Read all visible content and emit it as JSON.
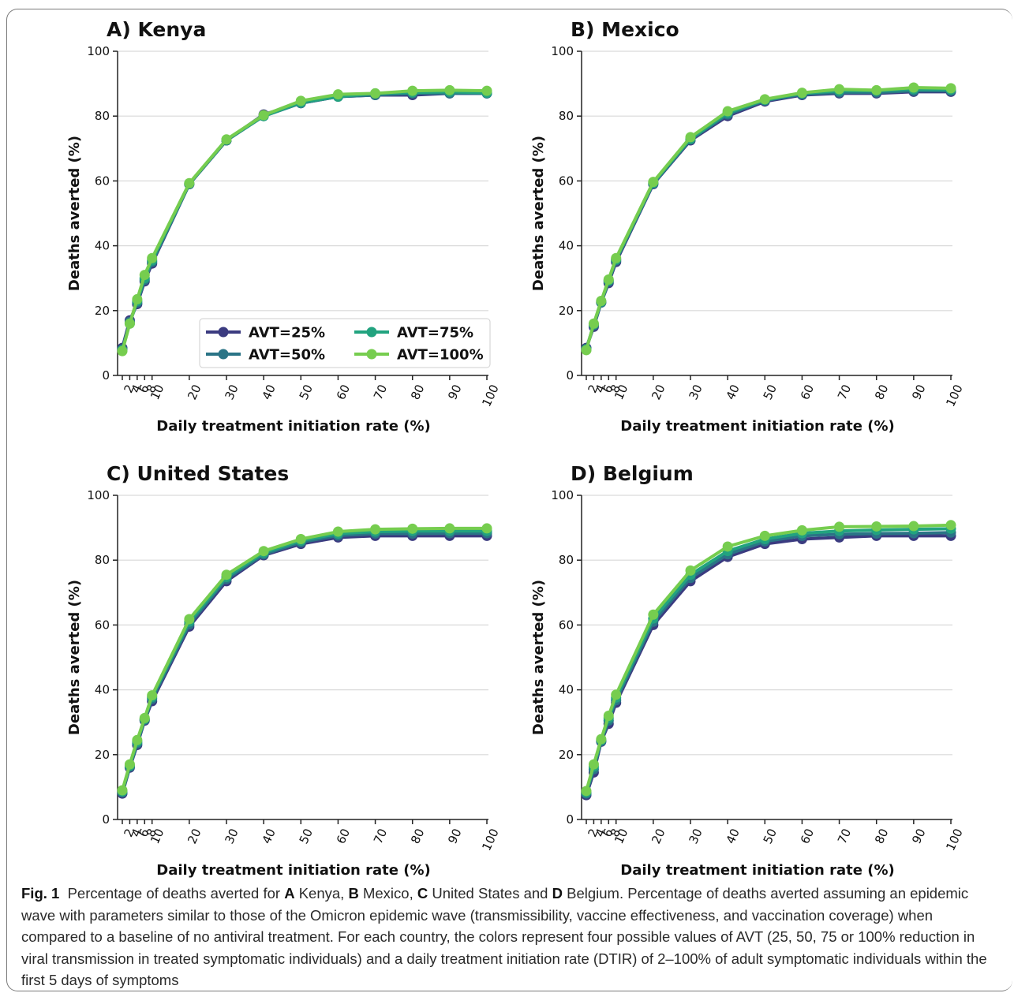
{
  "figure": {
    "x_ticks": [
      2,
      4,
      6,
      8,
      10,
      20,
      30,
      40,
      50,
      60,
      70,
      80,
      90,
      100
    ],
    "y_ticks": [
      0,
      20,
      40,
      60,
      80,
      100
    ],
    "series_colors": {
      "AVT=25%": "#3b3b80",
      "AVT=50%": "#2a7486",
      "AVT=75%": "#22a37f",
      "AVT=100%": "#76cd4f"
    }
  },
  "legend": {
    "items": [
      "AVT=25%",
      "AVT=50%",
      "AVT=75%",
      "AVT=100%"
    ]
  },
  "caption": {
    "fig_label": "Fig. 1",
    "text_1": "Percentage of deaths averted for ",
    "a": "A",
    "text_2": " Kenya, ",
    "b": "B",
    "text_3": " Mexico, ",
    "c": "C",
    "text_4": " United States and ",
    "d": "D",
    "text_5": " Belgium. Percentage of deaths averted assuming an epidemic wave with parameters similar to those of the Omicron epidemic wave (transmissibility, vaccine effectiveness, and vaccination coverage) when compared to a baseline of no antiviral treatment. For each country, the colors represent four possible values of AVT (25, 50, 75 or 100% reduction in viral transmission in treated symptomatic individuals) and a daily treatment initiation rate (DTIR) of 2–100% of adult symptomatic individuals within the first 5 days of symptoms"
  },
  "chart_data": [
    {
      "type": "line",
      "title": "A) Kenya",
      "xlabel": "Daily treatment initiation rate (%)",
      "ylabel": "Deaths averted (%)",
      "ylim": [
        0,
        100
      ],
      "grid": "horizontal",
      "legend": "lower-right",
      "x": [
        2,
        4,
        6,
        8,
        10,
        20,
        30,
        40,
        50,
        60,
        70,
        80,
        90,
        100
      ],
      "series": [
        {
          "name": "AVT=25%",
          "values": [
            8.5,
            17.0,
            22.0,
            29.0,
            34.5,
            59.0,
            72.5,
            80.5,
            84.0,
            86.0,
            86.5,
            86.5,
            87.0,
            87.0
          ]
        },
        {
          "name": "AVT=50%",
          "values": [
            8.0,
            16.5,
            22.5,
            29.5,
            35.0,
            59.0,
            72.5,
            80.0,
            84.0,
            86.0,
            86.5,
            87.0,
            87.0,
            87.0
          ]
        },
        {
          "name": "AVT=75%",
          "values": [
            7.8,
            16.0,
            23.0,
            30.0,
            35.5,
            59.2,
            72.7,
            80.0,
            84.2,
            86.0,
            87.0,
            87.3,
            87.5,
            87.2
          ]
        },
        {
          "name": "AVT=100%",
          "values": [
            7.5,
            16.0,
            23.5,
            31.0,
            36.2,
            59.3,
            72.8,
            80.3,
            84.7,
            86.7,
            87.0,
            87.8,
            88.0,
            87.8
          ]
        }
      ]
    },
    {
      "type": "line",
      "title": "B) Mexico",
      "xlabel": "Daily treatment initiation rate (%)",
      "ylabel": "Deaths averted (%)",
      "ylim": [
        0,
        100
      ],
      "grid": "horizontal",
      "x": [
        2,
        4,
        6,
        8,
        10,
        20,
        30,
        40,
        50,
        60,
        70,
        80,
        90,
        100
      ],
      "series": [
        {
          "name": "AVT=25%",
          "values": [
            8.5,
            15.0,
            22.5,
            28.5,
            35.0,
            59.0,
            72.5,
            80.0,
            84.5,
            86.5,
            87.0,
            87.0,
            87.5,
            87.5
          ]
        },
        {
          "name": "AVT=50%",
          "values": [
            8.2,
            15.5,
            22.5,
            29.0,
            35.5,
            59.2,
            72.8,
            80.5,
            84.8,
            86.7,
            87.3,
            87.3,
            87.8,
            87.8
          ]
        },
        {
          "name": "AVT=75%",
          "values": [
            8.0,
            15.8,
            22.8,
            29.3,
            35.8,
            59.4,
            73.0,
            81.0,
            85.0,
            87.0,
            87.8,
            87.8,
            88.3,
            88.2
          ]
        },
        {
          "name": "AVT=100%",
          "values": [
            7.8,
            16.0,
            23.0,
            29.6,
            36.2,
            59.7,
            73.5,
            81.5,
            85.2,
            87.2,
            88.3,
            88.0,
            88.8,
            88.6
          ]
        }
      ]
    },
    {
      "type": "line",
      "title": "C) United States",
      "xlabel": "Daily treatment initiation rate (%)",
      "ylabel": "Deaths averted (%)",
      "ylim": [
        0,
        100
      ],
      "grid": "horizontal",
      "x": [
        2,
        4,
        6,
        8,
        10,
        20,
        30,
        40,
        50,
        60,
        70,
        80,
        90,
        100
      ],
      "series": [
        {
          "name": "AVT=25%",
          "values": [
            8.0,
            16.0,
            23.0,
            30.5,
            36.5,
            59.5,
            73.5,
            81.5,
            85.0,
            87.0,
            87.5,
            87.5,
            87.5,
            87.5
          ]
        },
        {
          "name": "AVT=50%",
          "values": [
            8.4,
            16.3,
            23.5,
            30.8,
            37.2,
            60.2,
            74.2,
            81.8,
            85.5,
            87.6,
            88.2,
            88.2,
            88.3,
            88.3
          ]
        },
        {
          "name": "AVT=75%",
          "values": [
            8.7,
            16.6,
            24.0,
            31.0,
            37.8,
            61.0,
            74.8,
            82.3,
            86.0,
            88.2,
            88.8,
            89.0,
            89.0,
            89.0
          ]
        },
        {
          "name": "AVT=100%",
          "values": [
            9.0,
            17.0,
            24.5,
            31.3,
            38.3,
            61.8,
            75.5,
            82.8,
            86.5,
            88.8,
            89.5,
            89.7,
            89.8,
            89.8
          ]
        }
      ]
    },
    {
      "type": "line",
      "title": "D) Belgium",
      "xlabel": "Daily treatment initiation rate (%)",
      "ylabel": "Deaths averted (%)",
      "ylim": [
        0,
        100
      ],
      "grid": "horizontal",
      "x": [
        2,
        4,
        6,
        8,
        10,
        20,
        30,
        40,
        50,
        60,
        70,
        80,
        90,
        100
      ],
      "series": [
        {
          "name": "AVT=25%",
          "values": [
            7.5,
            14.5,
            24.0,
            29.5,
            36.0,
            60.0,
            73.5,
            81.0,
            85.0,
            86.5,
            87.0,
            87.5,
            87.5,
            87.5
          ]
        },
        {
          "name": "AVT=50%",
          "values": [
            8.0,
            15.5,
            24.2,
            30.5,
            36.8,
            61.0,
            74.5,
            81.8,
            85.8,
            87.5,
            88.0,
            88.2,
            88.3,
            88.5
          ]
        },
        {
          "name": "AVT=75%",
          "values": [
            8.4,
            16.3,
            24.5,
            31.3,
            37.6,
            62.0,
            75.5,
            82.8,
            86.5,
            88.3,
            89.0,
            89.3,
            89.5,
            89.7
          ]
        },
        {
          "name": "AVT=100%",
          "values": [
            8.8,
            17.0,
            24.8,
            32.0,
            38.5,
            63.2,
            76.8,
            84.2,
            87.5,
            89.2,
            90.3,
            90.4,
            90.5,
            90.8
          ]
        }
      ]
    }
  ]
}
